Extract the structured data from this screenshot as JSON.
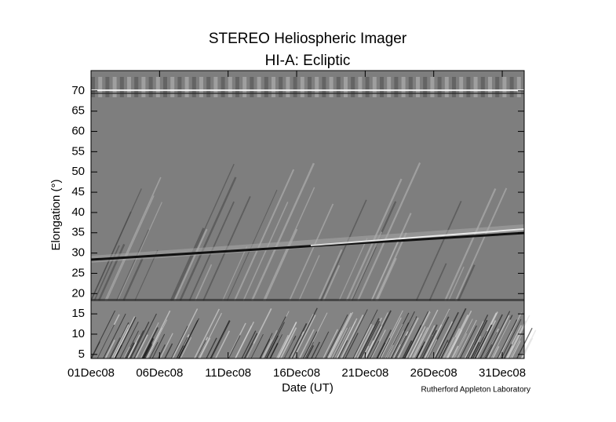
{
  "chart_data": {
    "type": "image",
    "title": "STEREO Heliospheric Imager",
    "subtitle": "HI-A: Ecliptic",
    "x_label": "Date (UT)",
    "y_label": "Elongation (°)",
    "credit": "Rutherford Appleton Laboratory",
    "xlim": [
      0,
      31.6
    ],
    "xticks": [
      {
        "value": 0,
        "label": "01Dec08"
      },
      {
        "value": 5,
        "label": "06Dec08"
      },
      {
        "value": 10,
        "label": "11Dec08"
      },
      {
        "value": 15,
        "label": "16Dec08"
      },
      {
        "value": 20,
        "label": "21Dec08"
      },
      {
        "value": 25,
        "label": "26Dec08"
      },
      {
        "value": 30,
        "label": "31Dec08"
      }
    ],
    "ylim": [
      4,
      75
    ],
    "yticks": [
      5,
      10,
      15,
      20,
      25,
      30,
      35,
      40,
      45,
      50,
      55,
      60,
      65,
      70
    ]
  }
}
